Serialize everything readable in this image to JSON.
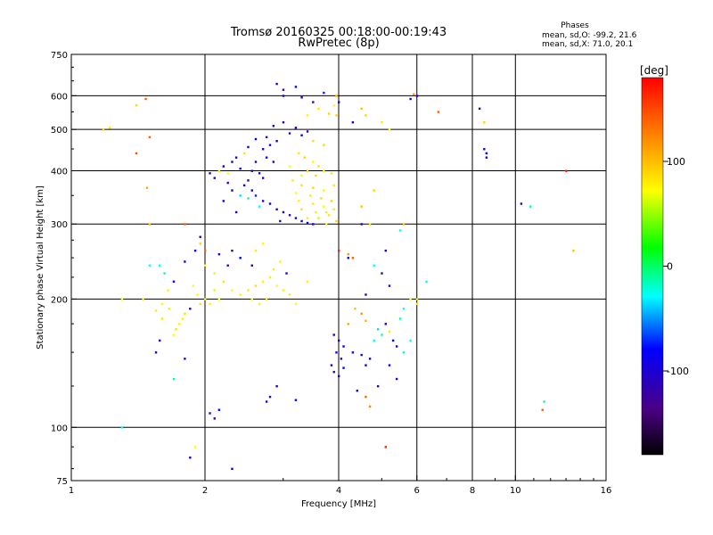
{
  "chart_data": {
    "type": "scatter",
    "title": "Tromsø 20160325 00:18:00-00:19:43",
    "subtitle": "RwPretec (8p)",
    "xlabel": "Frequency [MHz]",
    "ylabel": "Stationary phase Virtual Height [km]",
    "x_scale": "log",
    "y_scale": "log",
    "xlim": [
      1,
      16
    ],
    "ylim": [
      75,
      750
    ],
    "x_ticks": [
      1,
      2,
      4,
      6,
      8,
      10,
      16
    ],
    "y_ticks": [
      75,
      100,
      200,
      300,
      400,
      500,
      600,
      750
    ],
    "grid": true,
    "legend": {
      "title": "Phases",
      "lines": [
        "mean, sd,O: -99.2, 21.6",
        "mean, sd,X:  71.0, 20.1"
      ]
    },
    "colorbar": {
      "label": "[deg]",
      "range": [
        -180,
        180
      ],
      "ticks": [
        100,
        0,
        -100
      ],
      "tick_labels": [
        "100",
        "0",
        "-100"
      ]
    },
    "points": [
      [
        3.3,
        595,
        -110
      ],
      [
        3.5,
        580,
        -120
      ],
      [
        3.7,
        610,
        -90
      ],
      [
        3.9,
        570,
        80
      ],
      [
        3.0,
        620,
        -130
      ],
      [
        3.2,
        630,
        -100
      ],
      [
        3.6,
        560,
        90
      ],
      [
        3.8,
        545,
        100
      ],
      [
        3.4,
        540,
        85
      ],
      [
        3.95,
        600,
        110
      ],
      [
        3.0,
        520,
        -120
      ],
      [
        3.2,
        505,
        -110
      ],
      [
        3.4,
        495,
        -125
      ],
      [
        3.1,
        490,
        -130
      ],
      [
        3.3,
        485,
        -100
      ],
      [
        2.85,
        510,
        -115
      ],
      [
        2.75,
        480,
        -120
      ],
      [
        2.9,
        470,
        -110
      ],
      [
        3.5,
        470,
        95
      ],
      [
        3.7,
        460,
        100
      ],
      [
        2.8,
        460,
        -110
      ],
      [
        2.7,
        450,
        -120
      ],
      [
        2.75,
        430,
        -100
      ],
      [
        2.85,
        420,
        -110
      ],
      [
        2.6,
        420,
        -120
      ],
      [
        2.55,
        400,
        -115
      ],
      [
        2.65,
        395,
        -110
      ],
      [
        2.7,
        385,
        -130
      ],
      [
        2.4,
        405,
        -110
      ],
      [
        2.5,
        380,
        -120
      ],
      [
        3.25,
        440,
        90
      ],
      [
        3.35,
        430,
        100
      ],
      [
        3.5,
        420,
        85
      ],
      [
        3.6,
        410,
        95
      ],
      [
        3.4,
        400,
        100
      ],
      [
        3.7,
        400,
        90
      ],
      [
        3.3,
        390,
        85
      ],
      [
        3.55,
        390,
        100
      ],
      [
        3.85,
        395,
        90
      ],
      [
        3.1,
        410,
        80
      ],
      [
        3.15,
        380,
        90
      ],
      [
        3.3,
        370,
        95
      ],
      [
        3.5,
        365,
        100
      ],
      [
        3.7,
        360,
        85
      ],
      [
        3.9,
        370,
        90
      ],
      [
        3.2,
        355,
        80
      ],
      [
        3.45,
        350,
        90
      ],
      [
        3.65,
        345,
        95
      ],
      [
        3.85,
        340,
        100
      ],
      [
        3.25,
        340,
        85
      ],
      [
        3.5,
        335,
        90
      ],
      [
        3.7,
        330,
        80
      ],
      [
        3.9,
        325,
        90
      ],
      [
        3.3,
        325,
        95
      ],
      [
        3.55,
        320,
        85
      ],
      [
        3.8,
        315,
        90
      ],
      [
        3.6,
        310,
        95
      ],
      [
        3.95,
        305,
        100
      ],
      [
        3.4,
        310,
        90
      ],
      [
        3.75,
        300,
        85
      ],
      [
        2.45,
        370,
        -100
      ],
      [
        2.55,
        360,
        -110
      ],
      [
        2.6,
        350,
        -90
      ],
      [
        2.7,
        340,
        -120
      ],
      [
        2.8,
        335,
        -100
      ],
      [
        2.9,
        325,
        -110
      ],
      [
        3.0,
        320,
        -120
      ],
      [
        3.1,
        315,
        -130
      ],
      [
        3.2,
        310,
        -110
      ],
      [
        3.3,
        305,
        -120
      ],
      [
        3.4,
        302,
        -100
      ],
      [
        3.5,
        300,
        -110
      ],
      [
        2.65,
        330,
        -30
      ],
      [
        2.5,
        345,
        -20
      ],
      [
        2.4,
        350,
        -40
      ],
      [
        2.3,
        360,
        -110
      ],
      [
        2.25,
        375,
        -120
      ],
      [
        2.2,
        340,
        -100
      ],
      [
        2.35,
        320,
        -120
      ],
      [
        2.95,
        305,
        -130
      ],
      [
        2.1,
        385,
        -110
      ],
      [
        2.05,
        395,
        -120
      ],
      [
        2.2,
        410,
        -100
      ],
      [
        2.3,
        420,
        -110
      ],
      [
        2.15,
        400,
        90
      ],
      [
        2.25,
        395,
        80
      ],
      [
        2.35,
        430,
        -120
      ],
      [
        2.5,
        455,
        -110
      ],
      [
        2.6,
        475,
        -100
      ],
      [
        2.45,
        440,
        90
      ],
      [
        1.92,
        205,
        80
      ],
      [
        2.0,
        200,
        90
      ],
      [
        2.1,
        210,
        70
      ],
      [
        2.05,
        195,
        85
      ],
      [
        1.95,
        195,
        95
      ],
      [
        2.15,
        200,
        80
      ],
      [
        1.85,
        190,
        -110
      ],
      [
        1.8,
        185,
        90
      ],
      [
        1.75,
        175,
        85
      ],
      [
        1.7,
        165,
        80
      ],
      [
        1.72,
        170,
        95
      ],
      [
        1.78,
        180,
        90
      ],
      [
        1.66,
        190,
        70
      ],
      [
        1.6,
        195,
        80
      ],
      [
        1.55,
        188,
        90
      ],
      [
        1.65,
        210,
        85
      ],
      [
        1.7,
        220,
        -110
      ],
      [
        1.62,
        230,
        -20
      ],
      [
        1.58,
        240,
        -30
      ],
      [
        1.88,
        215,
        80
      ],
      [
        2.0,
        240,
        80
      ],
      [
        2.1,
        230,
        85
      ],
      [
        2.2,
        220,
        90
      ],
      [
        2.3,
        210,
        80
      ],
      [
        2.4,
        205,
        85
      ],
      [
        2.5,
        210,
        90
      ],
      [
        2.6,
        215,
        95
      ],
      [
        2.7,
        220,
        85
      ],
      [
        2.8,
        225,
        90
      ],
      [
        2.9,
        215,
        80
      ],
      [
        3.0,
        210,
        85
      ],
      [
        3.1,
        205,
        90
      ],
      [
        2.75,
        200,
        95
      ],
      [
        2.65,
        195,
        85
      ],
      [
        2.55,
        200,
        80
      ],
      [
        2.85,
        235,
        90
      ],
      [
        2.95,
        245,
        85
      ],
      [
        3.05,
        230,
        -110
      ],
      [
        2.25,
        240,
        -120
      ],
      [
        2.15,
        255,
        -110
      ],
      [
        1.95,
        280,
        -120
      ],
      [
        1.9,
        260,
        -100
      ],
      [
        2.3,
        260,
        -130
      ],
      [
        1.8,
        245,
        -110
      ],
      [
        2.4,
        250,
        -100
      ],
      [
        2.55,
        240,
        -120
      ],
      [
        2.6,
        260,
        90
      ],
      [
        2.7,
        270,
        85
      ],
      [
        3.4,
        220,
        85
      ],
      [
        3.2,
        195,
        80
      ],
      [
        3.9,
        165,
        -110
      ],
      [
        4.0,
        160,
        -120
      ],
      [
        4.1,
        155,
        -100
      ],
      [
        3.95,
        150,
        -110
      ],
      [
        4.05,
        145,
        -120
      ],
      [
        3.85,
        140,
        -110
      ],
      [
        3.9,
        135,
        -130
      ],
      [
        4.0,
        132,
        -120
      ],
      [
        4.1,
        138,
        -100
      ],
      [
        4.3,
        150,
        -110
      ],
      [
        4.5,
        148,
        -120
      ],
      [
        4.6,
        140,
        -100
      ],
      [
        4.7,
        145,
        -110
      ],
      [
        4.8,
        160,
        -30
      ],
      [
        4.9,
        170,
        -40
      ],
      [
        5.0,
        165,
        -20
      ],
      [
        5.1,
        175,
        -110
      ],
      [
        5.2,
        168,
        90
      ],
      [
        5.3,
        160,
        -100
      ],
      [
        5.4,
        155,
        -110
      ],
      [
        4.2,
        175,
        120
      ],
      [
        4.35,
        190,
        110
      ],
      [
        4.5,
        185,
        130
      ],
      [
        4.6,
        178,
        115
      ],
      [
        5.5,
        180,
        -20
      ],
      [
        5.6,
        190,
        -30
      ],
      [
        5.8,
        200,
        80
      ],
      [
        6.0,
        195,
        90
      ],
      [
        5.2,
        215,
        -110
      ],
      [
        5.0,
        230,
        -120
      ],
      [
        4.8,
        240,
        -30
      ],
      [
        4.6,
        205,
        -110
      ],
      [
        4.3,
        250,
        150
      ],
      [
        4.2,
        255,
        130
      ],
      [
        5.2,
        140,
        -100
      ],
      [
        5.4,
        130,
        -110
      ],
      [
        4.9,
        125,
        -120
      ],
      [
        4.4,
        122,
        -100
      ],
      [
        4.6,
        118,
        150
      ],
      [
        4.7,
        112,
        140
      ],
      [
        2.75,
        115,
        -110
      ],
      [
        2.8,
        118,
        -120
      ],
      [
        3.2,
        116,
        -100
      ],
      [
        2.9,
        125,
        -110
      ],
      [
        2.05,
        108,
        -120
      ],
      [
        2.1,
        105,
        -110
      ],
      [
        2.15,
        110,
        -100
      ],
      [
        1.9,
        90,
        80
      ],
      [
        1.85,
        85,
        -110
      ],
      [
        2.3,
        80,
        -100
      ],
      [
        1.3,
        100,
        -30
      ],
      [
        1.55,
        150,
        -120
      ],
      [
        1.58,
        160,
        -110
      ],
      [
        1.6,
        180,
        90
      ],
      [
        1.7,
        130,
        -20
      ],
      [
        1.8,
        145,
        -110
      ],
      [
        1.5,
        240,
        -30
      ],
      [
        1.45,
        200,
        90
      ],
      [
        1.4,
        570,
        100
      ],
      [
        1.47,
        590,
        150
      ],
      [
        1.18,
        500,
        100
      ],
      [
        1.22,
        505,
        90
      ],
      [
        1.5,
        480,
        150
      ],
      [
        1.4,
        440,
        155
      ],
      [
        1.48,
        365,
        120
      ],
      [
        1.5,
        300,
        110
      ],
      [
        1.3,
        200,
        80
      ],
      [
        1.8,
        300,
        150
      ],
      [
        1.95,
        270,
        100
      ],
      [
        2.0,
        260,
        150
      ],
      [
        5.8,
        590,
        -100
      ],
      [
        6.0,
        600,
        -110
      ],
      [
        5.9,
        605,
        130
      ],
      [
        5.2,
        500,
        80
      ],
      [
        5.0,
        520,
        90
      ],
      [
        4.6,
        540,
        100
      ],
      [
        4.5,
        560,
        110
      ],
      [
        4.0,
        580,
        -110
      ],
      [
        4.3,
        520,
        -110
      ],
      [
        3.95,
        540,
        100
      ],
      [
        8.5,
        450,
        -120
      ],
      [
        8.6,
        440,
        -100
      ],
      [
        8.6,
        430,
        -110
      ],
      [
        8.5,
        520,
        100
      ],
      [
        8.3,
        560,
        -130
      ],
      [
        10.3,
        335,
        -130
      ],
      [
        10.8,
        330,
        -20
      ],
      [
        13.0,
        400,
        170
      ],
      [
        13.5,
        260,
        110
      ],
      [
        11.5,
        110,
        150
      ],
      [
        11.6,
        115,
        -20
      ],
      [
        6.3,
        220,
        -30
      ],
      [
        6.0,
        200,
        90
      ],
      [
        5.5,
        290,
        -30
      ],
      [
        5.1,
        260,
        -110
      ],
      [
        4.5,
        330,
        110
      ],
      [
        4.7,
        300,
        90
      ],
      [
        4.8,
        360,
        100
      ],
      [
        5.6,
        300,
        110
      ],
      [
        6.7,
        550,
        150
      ],
      [
        4.0,
        260,
        170
      ],
      [
        4.2,
        250,
        -110
      ],
      [
        4.5,
        300,
        -120
      ],
      [
        5.1,
        90,
        170
      ],
      [
        5.6,
        150,
        -20
      ],
      [
        5.8,
        160,
        -30
      ],
      [
        3.6,
        310,
        90
      ],
      [
        3.75,
        320,
        85
      ],
      [
        3.0,
        600,
        -110
      ],
      [
        2.9,
        640,
        -110
      ]
    ]
  }
}
